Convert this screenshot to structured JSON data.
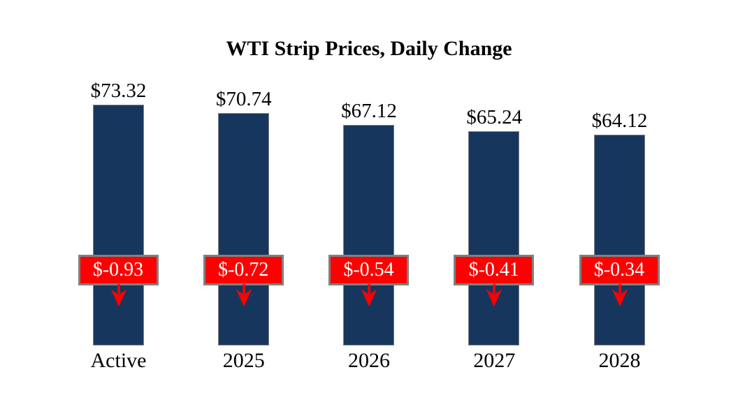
{
  "title": "WTI Strip Prices, Daily Change",
  "chart_data": {
    "type": "bar",
    "title": "WTI Strip Prices, Daily Change",
    "categories": [
      "Active",
      "2025",
      "2026",
      "2027",
      "2028"
    ],
    "values": [
      73.32,
      70.74,
      67.12,
      65.24,
      64.12
    ],
    "value_labels": [
      "$73.32",
      "$70.74",
      "$67.12",
      "$65.24",
      "$64.12"
    ],
    "changes": [
      -0.93,
      -0.72,
      -0.54,
      -0.41,
      -0.34
    ],
    "change_labels": [
      "$-0.93",
      "$-0.72",
      "$-0.54",
      "$-0.41",
      "$-0.34"
    ],
    "xlabel": "",
    "ylabel": "",
    "ylim": [
      0,
      75
    ],
    "grid": false,
    "legend": null,
    "colors": {
      "bar_fill": "#17365D",
      "bar_border": "#808080",
      "badge_fill": "#FF0000",
      "badge_border": "#808080",
      "badge_text": "#FFFFFF",
      "arrow": "#FF0000",
      "text": "#000000",
      "background": "#FFFFFF"
    }
  }
}
